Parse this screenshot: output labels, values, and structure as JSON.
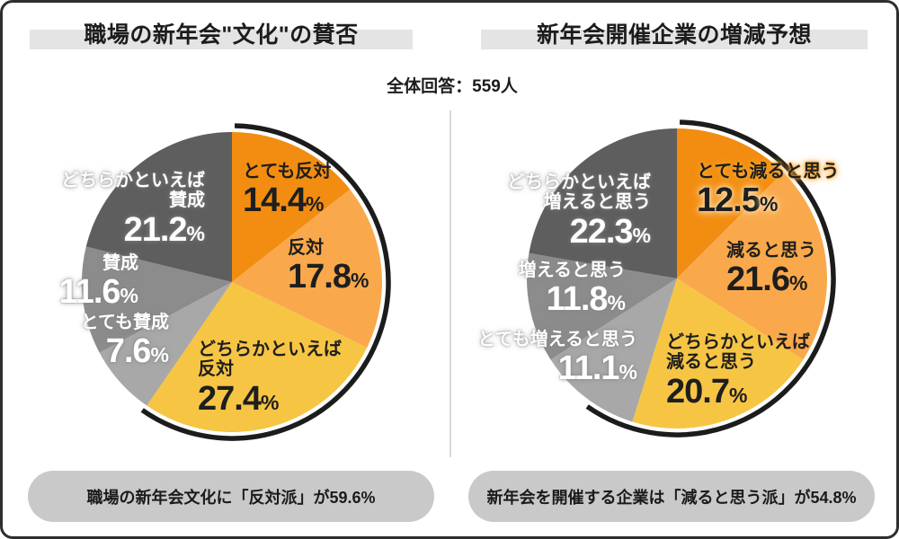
{
  "page": {
    "subtitle": "全体回答：559人",
    "percent_sign": "%"
  },
  "chart_data": [
    {
      "type": "pie",
      "title": "職場の新年会\"文化\"の賛否",
      "start": "top",
      "direction": "clockwise",
      "legend_position": "on-slices",
      "segments": [
        {
          "label": "とても反対",
          "lines": [
            "とても反対"
          ],
          "value": 14.4,
          "color": "#F28D11",
          "text": "dark"
        },
        {
          "label": "反対",
          "lines": [
            "反対"
          ],
          "value": 17.8,
          "color": "#F9A94B",
          "text": "dark"
        },
        {
          "label": "どちらかといえば反対",
          "lines": [
            "どちらかといえば",
            "反対"
          ],
          "value": 27.4,
          "color": "#F7C544",
          "text": "dark"
        },
        {
          "label": "とても賛成",
          "lines": [
            "とても賛成"
          ],
          "value": 7.6,
          "color": "#A8A8A8",
          "text": "light"
        },
        {
          "label": "賛成",
          "lines": [
            "賛成"
          ],
          "value": 11.6,
          "color": "#8C8C8C",
          "text": "light"
        },
        {
          "label": "どちらかといえば賛成",
          "lines": [
            "どちらかといえば",
            "賛成"
          ],
          "value": 21.2,
          "color": "#5E5E5E",
          "text": "light"
        }
      ],
      "summary": "職場の新年会文化に「反対派」が59.6%"
    },
    {
      "type": "pie",
      "title": "新年会開催企業の増減予想",
      "start": "top",
      "direction": "clockwise",
      "legend_position": "on-slices",
      "segments": [
        {
          "label": "とても減ると思う",
          "lines": [
            "とても減ると思う"
          ],
          "value": 12.5,
          "color": "#F28D11",
          "text": "dark"
        },
        {
          "label": "減ると思う",
          "lines": [
            "減ると思う"
          ],
          "value": 21.6,
          "color": "#F9A94B",
          "text": "dark"
        },
        {
          "label": "どちらかといえば減ると思う",
          "lines": [
            "どちらかといえば",
            "減ると思う"
          ],
          "value": 20.7,
          "color": "#F7C544",
          "text": "dark"
        },
        {
          "label": "とても増えると思う",
          "lines": [
            "とても増えると思う"
          ],
          "value": 11.1,
          "color": "#A8A8A8",
          "text": "light"
        },
        {
          "label": "増えると思う",
          "lines": [
            "増えると思う"
          ],
          "value": 11.8,
          "color": "#8C8C8C",
          "text": "light"
        },
        {
          "label": "どちらかといえば増えると思う",
          "lines": [
            "どちらかといえば",
            "増えると思う"
          ],
          "value": 22.3,
          "color": "#5E5E5E",
          "text": "light"
        }
      ],
      "summary": "新年会を開催する企業は「減ると思う派」が54.8%"
    }
  ]
}
